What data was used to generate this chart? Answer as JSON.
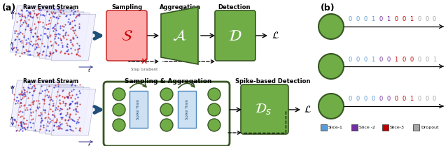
{
  "title_a": "(a)",
  "title_b": "(b)",
  "legend_items": [
    {
      "label": "Slice-1",
      "color": "#5B9BD5"
    },
    {
      "label": "Slice -2",
      "color": "#7030A0"
    },
    {
      "label": "Slice-3",
      "color": "#C00000"
    },
    {
      "label": "Dropout",
      "color": "#A6A6A6"
    }
  ],
  "row1_sequence": [
    {
      "char": "0",
      "color": "#5B9BD5"
    },
    {
      "char": "0",
      "color": "#5B9BD5"
    },
    {
      "char": "0",
      "color": "#5B9BD5"
    },
    {
      "char": "1",
      "color": "#5B9BD5"
    },
    {
      "char": "0",
      "color": "#7030A0"
    },
    {
      "char": "1",
      "color": "#7030A0"
    },
    {
      "char": "0",
      "color": "#C00000"
    },
    {
      "char": "0",
      "color": "#C00000"
    },
    {
      "char": "1",
      "color": "#C00000"
    },
    {
      "char": "0",
      "color": "#A6A6A6"
    },
    {
      "char": "0",
      "color": "#A6A6A6"
    },
    {
      "char": "0",
      "color": "#A6A6A6"
    }
  ],
  "row2_sequence": [
    {
      "char": "0",
      "color": "#5B9BD5"
    },
    {
      "char": "0",
      "color": "#5B9BD5"
    },
    {
      "char": "0",
      "color": "#5B9BD5"
    },
    {
      "char": "1",
      "color": "#5B9BD5"
    },
    {
      "char": "0",
      "color": "#7030A0"
    },
    {
      "char": "0",
      "color": "#7030A0"
    },
    {
      "char": "1",
      "color": "#C00000"
    },
    {
      "char": "0",
      "color": "#C00000"
    },
    {
      "char": "0",
      "color": "#C00000"
    },
    {
      "char": "0",
      "color": "#A6A6A6"
    },
    {
      "char": "0",
      "color": "#A6A6A6"
    },
    {
      "char": "1",
      "color": "#A6A6A6"
    }
  ],
  "row3_sequence": [
    {
      "char": "0",
      "color": "#5B9BD5"
    },
    {
      "char": "0",
      "color": "#5B9BD5"
    },
    {
      "char": "0",
      "color": "#5B9BD5"
    },
    {
      "char": "0",
      "color": "#5B9BD5"
    },
    {
      "char": "0",
      "color": "#7030A0"
    },
    {
      "char": "0",
      "color": "#7030A0"
    },
    {
      "char": "0",
      "color": "#C00000"
    },
    {
      "char": "0",
      "color": "#C00000"
    },
    {
      "char": "1",
      "color": "#C00000"
    },
    {
      "char": "0",
      "color": "#A6A6A6"
    },
    {
      "char": "0",
      "color": "#A6A6A6"
    },
    {
      "char": "0",
      "color": "#A6A6A6"
    }
  ],
  "node_color": "#70AD47",
  "node_edge_color": "#375623",
  "bg_color": "#FFFFFF",
  "green_fill": "#70AD47",
  "green_edge": "#375623",
  "red_fill": "#FFAAAA",
  "red_edge": "#CC3333",
  "trap_fill": "#70AD47",
  "trap_edge": "#375623",
  "blue_arrow": "#1F4E79",
  "spike_fill": "#C5DCF0",
  "spike_edge": "#2E75B6"
}
